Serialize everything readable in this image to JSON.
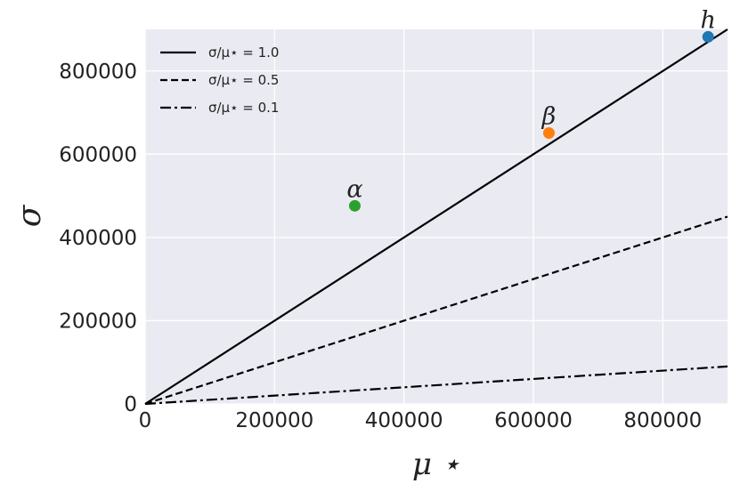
{
  "chart_data": {
    "type": "scatter",
    "xlabel": "μ ⋆",
    "ylabel": "σ",
    "xlim": [
      0,
      900000
    ],
    "ylim": [
      0,
      900000
    ],
    "grid": true,
    "legend_placement": "top-left",
    "x_ticks": [
      0,
      200000,
      400000,
      600000,
      800000
    ],
    "y_ticks": [
      0,
      200000,
      400000,
      600000,
      800000
    ],
    "x_tick_labels": [
      "0",
      "200000",
      "400000",
      "600000",
      "800000"
    ],
    "y_tick_labels": [
      "0",
      "200000",
      "400000",
      "600000",
      "800000"
    ],
    "reference_lines": [
      {
        "name": "σ/μ⋆ = 1.0",
        "ratio": 1.0,
        "style": "solid"
      },
      {
        "name": "σ/μ⋆ = 0.5",
        "ratio": 0.5,
        "style": "dashed"
      },
      {
        "name": "σ/μ⋆ = 0.1",
        "ratio": 0.1,
        "style": "dashdot"
      }
    ],
    "points": [
      {
        "label": "h",
        "x": 870000,
        "y": 882000,
        "color": "#1f77b4"
      },
      {
        "label": "β",
        "x": 624000,
        "y": 651000,
        "color": "#ff7f0e"
      },
      {
        "label": "α",
        "x": 324000,
        "y": 476000,
        "color": "#2ca02c"
      }
    ],
    "colors": {
      "plot_background": "#eaeaf2",
      "grid": "#ffffff",
      "line": "#000000"
    }
  }
}
